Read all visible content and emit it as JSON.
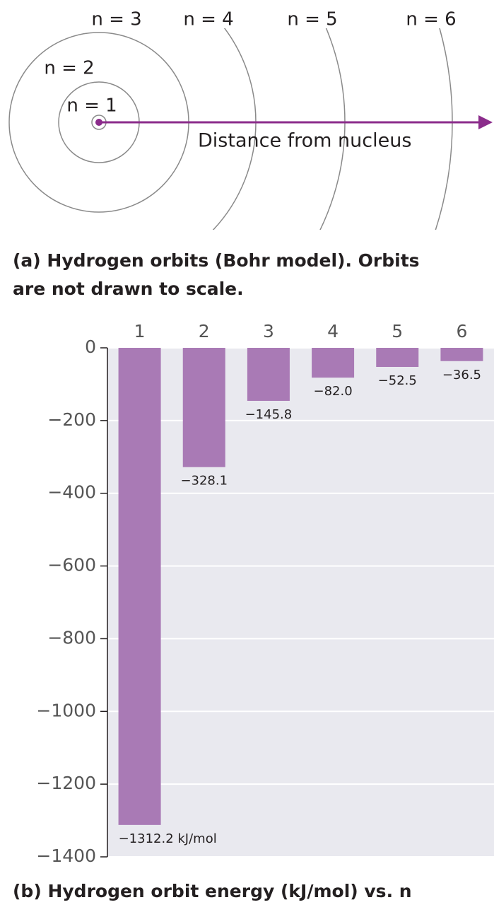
{
  "diagram": {
    "orbit_labels": [
      "n = 1",
      "n = 2",
      "n = 3",
      "n = 4",
      "n = 5",
      "n = 6"
    ],
    "axis_label": "Distance from nucleus",
    "caption": [
      "(a) Hydrogen orbits (Bohr model). Orbits",
      "are not drawn to scale."
    ]
  },
  "chart_data": {
    "type": "bar",
    "title": "(b) Hydrogen orbit energy (kJ/mol) vs. n",
    "categories": [
      "1",
      "2",
      "3",
      "4",
      "5",
      "6"
    ],
    "values": [
      -1312.2,
      -328.1,
      -145.8,
      -82.0,
      -52.5,
      -36.5
    ],
    "value_labels": [
      "−1312.2 kJ/mol",
      "−328.1",
      "−145.8",
      "−82.0",
      "−52.5",
      "−36.5"
    ],
    "color": "#a97ab5",
    "ylim": [
      -1400,
      0
    ],
    "yticks": [
      0,
      {
        "value": -200,
        "label": "−200"
      },
      {
        "value": -400,
        "label": "−400"
      },
      {
        "value": -600,
        "label": "−600"
      },
      {
        "value": -800,
        "label": "−800"
      },
      {
        "value": -1000,
        "label": "−1000"
      },
      {
        "value": -1200,
        "label": "−1200"
      },
      {
        "value": -1400,
        "label": "−1400"
      }
    ],
    "grid": true
  }
}
